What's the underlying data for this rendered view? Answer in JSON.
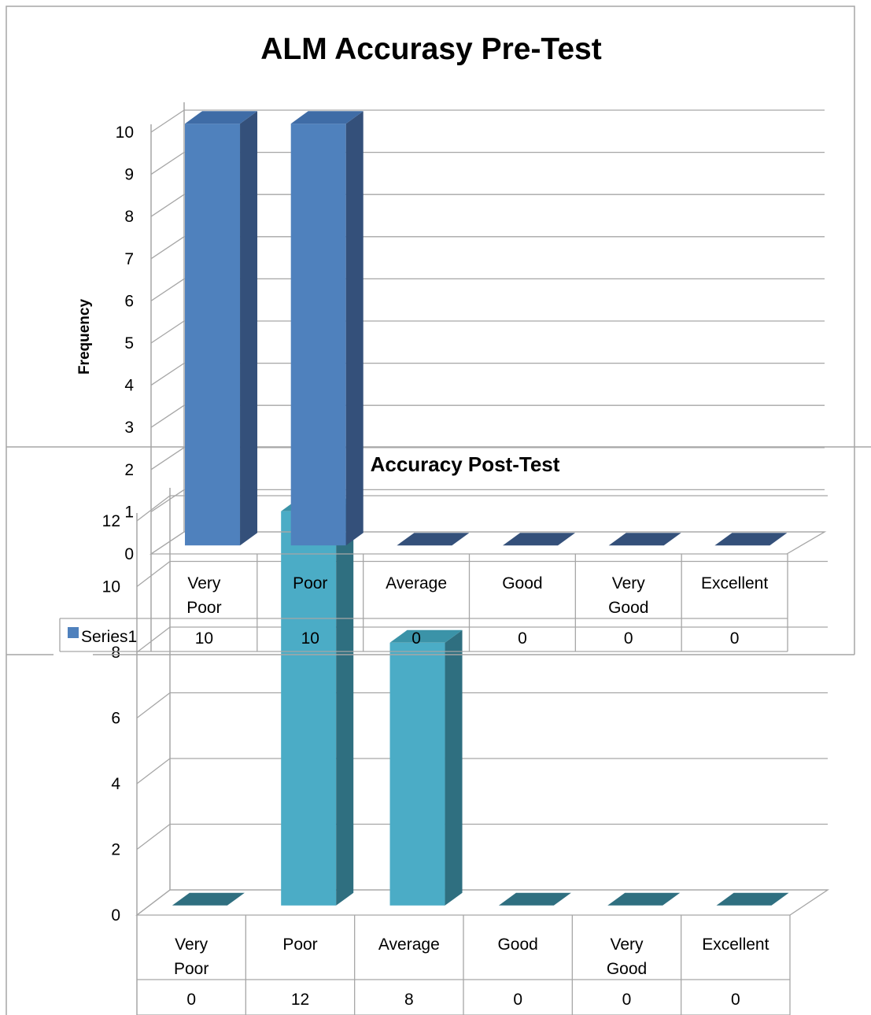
{
  "chart_data": [
    {
      "type": "bar",
      "title": "ALM Accurasy Pre-Test",
      "ylabel": "Frequency",
      "xlabel": "",
      "categories": [
        "Very Poor",
        "Poor",
        "Average",
        "Good",
        "Very Good",
        "Excellent"
      ],
      "series": [
        {
          "name": "Series1",
          "values": [
            10,
            10,
            0,
            0,
            0,
            0
          ]
        }
      ],
      "ylim": [
        0,
        10
      ],
      "yticks": [
        0,
        1,
        2,
        3,
        4,
        5,
        6,
        7,
        8,
        9,
        10
      ],
      "grid": true,
      "three_d": true,
      "data_table": true,
      "colors": {
        "bar_front": "#4F81BD",
        "bar_side": "#34507A",
        "bar_top": "#3F6CA6"
      }
    },
    {
      "type": "bar",
      "title": "Accuracy Post-Test",
      "ylabel": "",
      "xlabel": "",
      "categories": [
        "Very Poor",
        "Poor",
        "Average",
        "Good",
        "Very Good",
        "Excellent"
      ],
      "series": [
        {
          "values": [
            0,
            12,
            8,
            0,
            0,
            0
          ]
        }
      ],
      "ylim": [
        0,
        12
      ],
      "yticks": [
        0,
        2,
        4,
        6,
        8,
        10,
        12
      ],
      "grid": true,
      "three_d": true,
      "data_table": true,
      "colors": {
        "bar_front": "#4BACC6",
        "bar_side": "#2F6F80",
        "bar_top": "#3B93A8"
      }
    }
  ]
}
